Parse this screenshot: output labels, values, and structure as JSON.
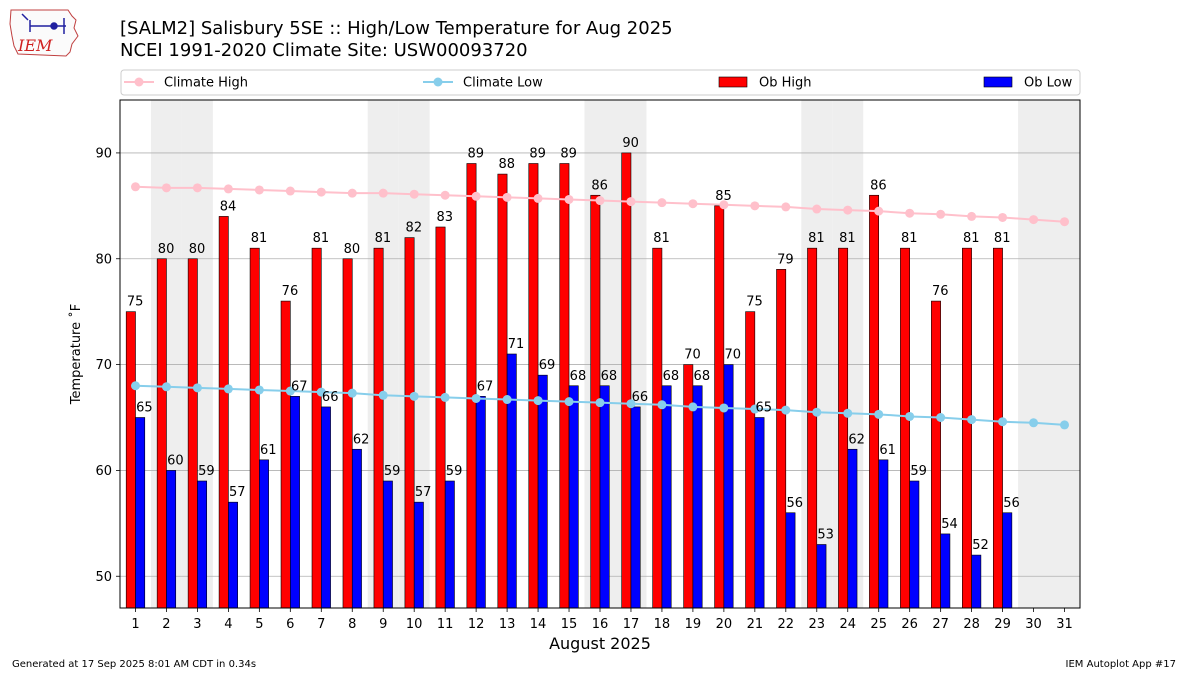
{
  "header": {
    "title_line1": "[SALM2] Salisbury 5SE :: High/Low Temperature for Aug 2025",
    "title_line2": "NCEI 1991-2020 Climate Site: USW00093720",
    "logo_text": "IEM"
  },
  "footer": {
    "generated": "Generated at 17 Sep 2025 8:01 AM CDT in 0.34s",
    "app": "IEM Autoplot App #17"
  },
  "chart_data": {
    "type": "bar",
    "title": "[SALM2] Salisbury 5SE :: High/Low Temperature for Aug 2025",
    "subtitle": "NCEI 1991-2020 Climate Site: USW00093720",
    "xlabel": "August 2025",
    "ylabel": "Temperature ˚F",
    "ylim": [
      47,
      95
    ],
    "yticks": [
      50,
      60,
      70,
      80,
      90
    ],
    "grid": true,
    "legend_placement": "top",
    "categories": [
      1,
      2,
      3,
      4,
      5,
      6,
      7,
      8,
      9,
      10,
      11,
      12,
      13,
      14,
      15,
      16,
      17,
      18,
      19,
      20,
      21,
      22,
      23,
      24,
      25,
      26,
      27,
      28,
      29,
      30,
      31
    ],
    "weekend_days": [
      2,
      3,
      9,
      10,
      16,
      17,
      23,
      24,
      30,
      31
    ],
    "series": [
      {
        "name": "Climate High",
        "kind": "line",
        "color": "#ffc0cb",
        "values": [
          86.8,
          86.7,
          86.7,
          86.6,
          86.5,
          86.4,
          86.3,
          86.2,
          86.2,
          86.1,
          86.0,
          85.9,
          85.8,
          85.7,
          85.6,
          85.5,
          85.4,
          85.3,
          85.2,
          85.1,
          85.0,
          84.9,
          84.7,
          84.6,
          84.5,
          84.3,
          84.2,
          84.0,
          83.9,
          83.7,
          83.5
        ]
      },
      {
        "name": "Climate Low",
        "kind": "line",
        "color": "#87ceeb",
        "values": [
          68.0,
          67.9,
          67.8,
          67.7,
          67.6,
          67.5,
          67.4,
          67.3,
          67.1,
          67.0,
          66.9,
          66.8,
          66.7,
          66.6,
          66.5,
          66.4,
          66.3,
          66.2,
          66.0,
          65.9,
          65.8,
          65.7,
          65.5,
          65.4,
          65.3,
          65.1,
          65.0,
          64.8,
          64.6,
          64.5,
          64.3
        ]
      },
      {
        "name": "Ob High",
        "kind": "bar",
        "color": "#ff0000",
        "values": [
          75,
          80,
          80,
          84,
          81,
          76,
          81,
          80,
          81,
          82,
          83,
          89,
          88,
          89,
          89,
          86,
          90,
          81,
          70,
          85,
          75,
          79,
          81,
          81,
          86,
          81,
          76,
          81,
          81,
          null,
          null
        ]
      },
      {
        "name": "Ob Low",
        "kind": "bar",
        "color": "#0000ff",
        "values": [
          65,
          60,
          59,
          57,
          61,
          67,
          66,
          62,
          59,
          57,
          59,
          67,
          71,
          69,
          68,
          68,
          66,
          68,
          68,
          70,
          65,
          56,
          53,
          62,
          61,
          59,
          54,
          52,
          56,
          null,
          null
        ]
      }
    ]
  }
}
